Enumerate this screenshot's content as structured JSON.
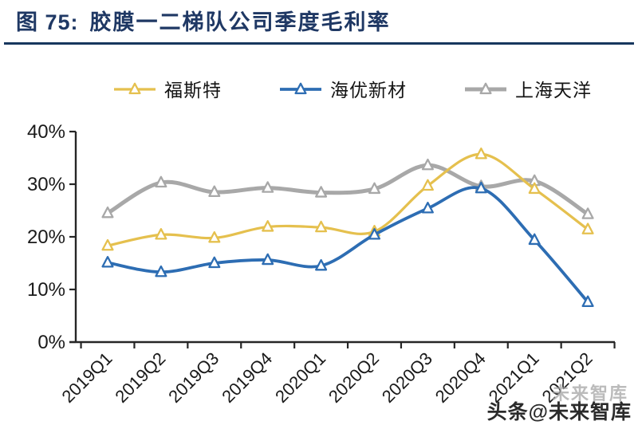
{
  "header": {
    "figure_label": "图 75:",
    "title": "胶膜一二梯队公司季度毛利率"
  },
  "watermark": {
    "ghost": "未来智库",
    "main": "头条@未来智库"
  },
  "colors": {
    "accent_navy": "#1F3864",
    "rule": "#17375E",
    "axis": "#262626",
    "tick_text": "#1a1a1a",
    "series_foster_gold": "#E5C04E",
    "series_haiyou_blue": "#2D6DB3",
    "series_tianyang_gray": "#A8A8A8"
  },
  "chart_data": {
    "type": "line",
    "title": "胶膜一二梯队公司季度毛利率",
    "categories": [
      "2019Q1",
      "2019Q2",
      "2019Q3",
      "2019Q4",
      "2020Q1",
      "2020Q2",
      "2020Q3",
      "2020Q4",
      "2021Q1",
      "2021Q2"
    ],
    "series": [
      {
        "name": "福斯特",
        "color": "#E5C04E",
        "line_width": 3.2,
        "values": [
          18.3,
          20.4,
          19.8,
          21.9,
          21.8,
          21.0,
          29.7,
          35.7,
          29.1,
          21.4
        ]
      },
      {
        "name": "海优新材",
        "color": "#2D6DB3",
        "line_width": 3.8,
        "values": [
          15.1,
          13.3,
          15.0,
          15.6,
          14.5,
          20.4,
          25.4,
          29.2,
          19.4,
          7.6
        ]
      },
      {
        "name": "上海天洋",
        "color": "#A8A8A8",
        "line_width": 5.0,
        "values": [
          24.5,
          30.3,
          28.5,
          29.3,
          28.4,
          29.1,
          33.6,
          29.6,
          30.6,
          24.3
        ]
      }
    ],
    "draw_order": [
      2,
      0,
      1
    ],
    "legend_order": [
      0,
      1,
      2
    ],
    "legend_position": "top",
    "y_ticks": [
      {
        "label": "40%",
        "value": 40
      },
      {
        "label": "30%",
        "value": 30
      },
      {
        "label": "20%",
        "value": 20
      },
      {
        "label": "10%",
        "value": 10
      },
      {
        "label": "0%",
        "value": 0
      }
    ],
    "ylim": [
      0,
      40
    ],
    "marker": "hollow-triangle",
    "smooth": true,
    "grid": false,
    "ylabel": "",
    "xlabel": ""
  }
}
